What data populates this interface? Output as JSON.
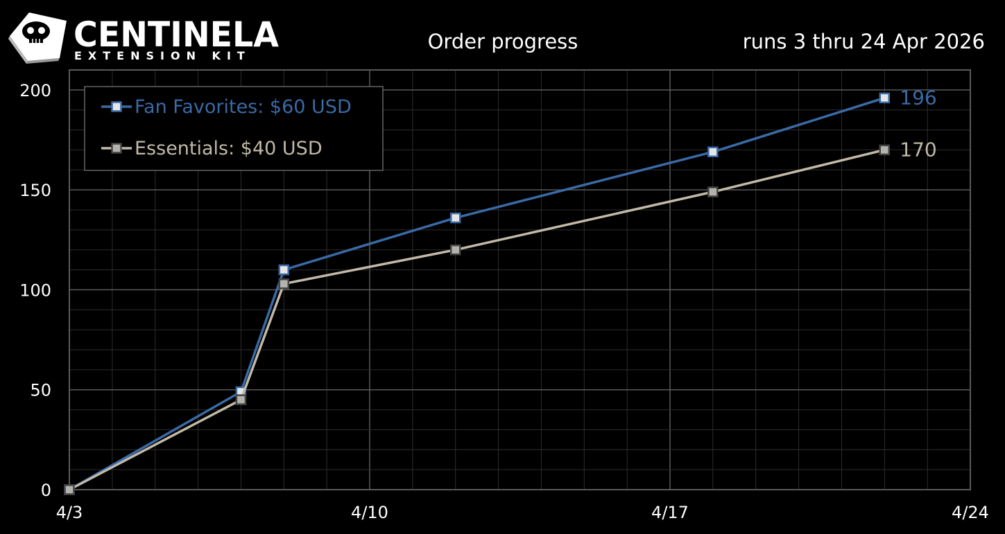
{
  "brand": {
    "name": "CENTINELA",
    "tagline": "EXTENSION KIT",
    "icon": "skull-keycap-icon"
  },
  "colors": {
    "background": "#000000",
    "grid_major": "#5a5a5a",
    "grid_minor": "#2e2e2e",
    "fan_favorites": "#3a6aa6",
    "essentials": "#c2baa8",
    "legend_border": "#666666",
    "text": "#ffffff"
  },
  "chart_data": {
    "type": "line",
    "title": "Order progress",
    "subtitle": "runs 3 thru 24 Apr 2026",
    "xlabel": "",
    "ylabel": "",
    "x_ticks": [
      "4/3",
      "4/10",
      "4/17",
      "4/24"
    ],
    "y_ticks": [
      0,
      50,
      100,
      150,
      200
    ],
    "ylim": [
      0,
      210
    ],
    "xlim": [
      "2026-04-03",
      "2026-04-24"
    ],
    "grid": true,
    "legend_position": "top-left",
    "series": [
      {
        "name": "Fan Favorites: $60 USD",
        "color": "#3a6aa6",
        "points": [
          {
            "x": "2026-04-03",
            "y": 0
          },
          {
            "x": "2026-04-07",
            "y": 49
          },
          {
            "x": "2026-04-08",
            "y": 110
          },
          {
            "x": "2026-04-12",
            "y": 136
          },
          {
            "x": "2026-04-18",
            "y": 169
          },
          {
            "x": "2026-04-22",
            "y": 196
          }
        ],
        "end_label": "196"
      },
      {
        "name": "Essentials: $40 USD",
        "color": "#c2baa8",
        "points": [
          {
            "x": "2026-04-03",
            "y": 0
          },
          {
            "x": "2026-04-07",
            "y": 45
          },
          {
            "x": "2026-04-08",
            "y": 103
          },
          {
            "x": "2026-04-12",
            "y": 120
          },
          {
            "x": "2026-04-18",
            "y": 149
          },
          {
            "x": "2026-04-22",
            "y": 170
          }
        ],
        "end_label": "170"
      }
    ]
  }
}
